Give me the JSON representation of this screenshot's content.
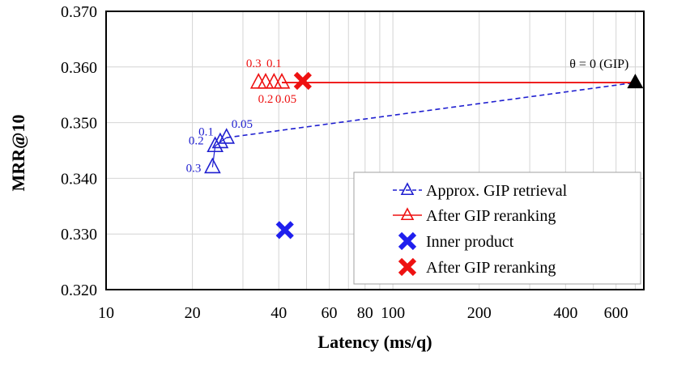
{
  "chart_data": {
    "type": "scatter",
    "title": "",
    "xlabel": "Latency (ms/q)",
    "ylabel": "MRR@10",
    "x_scale": "log",
    "xlim": [
      10,
      750
    ],
    "ylim": [
      0.32,
      0.37
    ],
    "x_ticks": [
      {
        "value": 10,
        "label": "10"
      },
      {
        "value": 20,
        "label": "20"
      },
      {
        "value": 40,
        "label": "40"
      },
      {
        "value": 60,
        "label": "60"
      },
      {
        "value": 80,
        "label": "80"
      },
      {
        "value": 100,
        "label": "100"
      },
      {
        "value": 200,
        "label": "200"
      },
      {
        "value": 400,
        "label": "400"
      },
      {
        "value": 600,
        "label": "600"
      }
    ],
    "y_ticks": [
      {
        "value": 0.32,
        "label": "0.320"
      },
      {
        "value": 0.33,
        "label": "0.330"
      },
      {
        "value": 0.34,
        "label": "0.340"
      },
      {
        "value": 0.35,
        "label": "0.350"
      },
      {
        "value": 0.36,
        "label": "0.360"
      },
      {
        "value": 0.37,
        "label": "0.370"
      }
    ],
    "grid": true,
    "legend_position": "bottom-right",
    "series": [
      {
        "name": "Approx. GIP retrieval",
        "marker": "triangle-open",
        "line": "dashed",
        "color": "#1f1fd0",
        "points": [
          {
            "x": 23.5,
            "y": 0.342,
            "label": "0.3"
          },
          {
            "x": 24.0,
            "y": 0.3458,
            "label": "0.2"
          },
          {
            "x": 25.0,
            "y": 0.3465,
            "label": "0.1"
          },
          {
            "x": 26.3,
            "y": 0.3473,
            "label": "0.05"
          },
          {
            "x": 700,
            "y": 0.3572,
            "label": ""
          }
        ]
      },
      {
        "name": "After GIP reranking",
        "marker": "triangle-open",
        "line": "solid",
        "color": "#ee1111",
        "points": [
          {
            "x": 34.0,
            "y": 0.3572,
            "label": "0.3"
          },
          {
            "x": 36.0,
            "y": 0.3572,
            "label": "0.2"
          },
          {
            "x": 38.5,
            "y": 0.3572,
            "label": "0.1"
          },
          {
            "x": 41.0,
            "y": 0.3572,
            "label": "0.05"
          },
          {
            "x": 700,
            "y": 0.3572,
            "label": ""
          }
        ]
      },
      {
        "name": "Inner product",
        "marker": "x-bold",
        "line": "none",
        "color": "#1f1fee",
        "points": [
          {
            "x": 42.0,
            "y": 0.3307
          }
        ]
      },
      {
        "name": "After GIP reranking",
        "marker": "x-bold",
        "line": "none",
        "color": "#ee1111",
        "points": [
          {
            "x": 48.5,
            "y": 0.3575
          }
        ]
      }
    ],
    "gip_point": {
      "x": 700,
      "y": 0.3572,
      "label": "θ = 0 (GIP)",
      "color": "#000000"
    }
  }
}
